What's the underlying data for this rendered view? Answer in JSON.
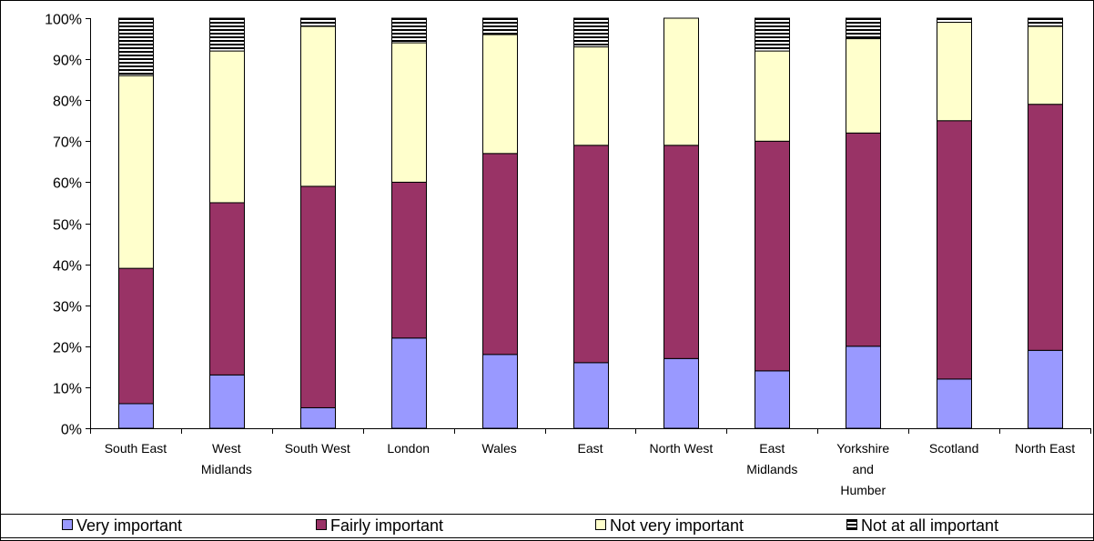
{
  "chart_data": {
    "type": "bar",
    "stacked": true,
    "percent": true,
    "categories": [
      [
        "South East"
      ],
      [
        "West",
        "Midlands"
      ],
      [
        "South West"
      ],
      [
        "London"
      ],
      [
        "Wales"
      ],
      [
        "East"
      ],
      [
        "North West"
      ],
      [
        "East",
        "Midlands"
      ],
      [
        "Yorkshire",
        "and",
        "Humber"
      ],
      [
        "Scotland"
      ],
      [
        "North East"
      ]
    ],
    "series": [
      {
        "name": "Very important",
        "color": "#9999ff",
        "values": [
          6,
          13,
          5,
          22,
          18,
          16,
          17,
          14,
          20,
          12,
          19
        ]
      },
      {
        "name": "Fairly important",
        "color": "#993366",
        "values": [
          33,
          42,
          54,
          38,
          49,
          53,
          52,
          56,
          52,
          63,
          60
        ]
      },
      {
        "name": "Not very important",
        "color": "#ffffcc",
        "values": [
          47,
          37,
          39,
          34,
          29,
          24,
          31,
          22,
          23,
          24,
          19
        ]
      },
      {
        "name": "Not at all important",
        "pattern": "horizontal-stripes",
        "values": [
          14,
          8,
          2,
          6,
          4,
          7,
          0,
          8,
          5,
          1,
          2
        ]
      }
    ],
    "yticks": [
      "0%",
      "10%",
      "20%",
      "30%",
      "40%",
      "50%",
      "60%",
      "70%",
      "80%",
      "90%",
      "100%"
    ],
    "ylim": [
      0,
      100
    ],
    "grid": false,
    "legend_position": "bottom"
  }
}
